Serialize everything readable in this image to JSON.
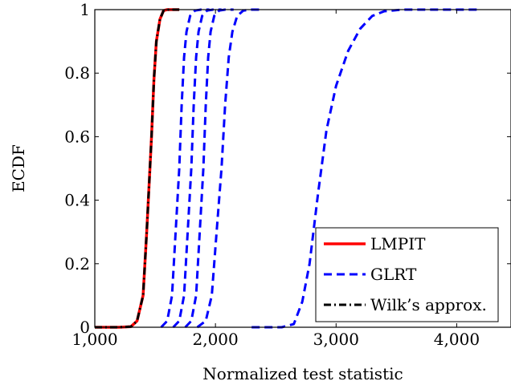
{
  "chart_data": {
    "type": "line",
    "title": "",
    "xlabel": "Normalized test statistic",
    "ylabel": "ECDF",
    "xlim": [
      1000,
      4450
    ],
    "ylim": [
      0,
      1
    ],
    "x_ticks": [
      1000,
      2000,
      3000,
      4000
    ],
    "x_tick_labels": [
      "1,000",
      "2,000",
      "3,000",
      "4,000"
    ],
    "y_ticks": [
      0,
      0.2,
      0.4,
      0.6,
      0.8,
      1
    ],
    "y_tick_labels": [
      "0",
      "0.2",
      "0.4",
      "0.6",
      "0.8",
      "1"
    ],
    "grid": false,
    "legend": {
      "position": "bottom-right",
      "entries": [
        "LMPIT",
        "GLRT",
        "Wilk’s approx."
      ]
    },
    "series": [
      {
        "name": "LMPIT",
        "color": "#ff0000",
        "style": "solid",
        "x": [
          1000,
          1200,
          1300,
          1350,
          1400,
          1430,
          1450,
          1470,
          1490,
          1510,
          1540,
          1570,
          1600,
          1700
        ],
        "y": [
          0,
          0,
          0.002,
          0.02,
          0.1,
          0.3,
          0.45,
          0.6,
          0.78,
          0.9,
          0.97,
          0.997,
          1,
          1
        ]
      },
      {
        "name": "GLRT",
        "color": "#0000ff",
        "style": "dashed",
        "x": [
          1550,
          1600,
          1640,
          1670,
          1700,
          1720,
          1740,
          1760,
          1790,
          1830,
          1880,
          1950
        ],
        "y": [
          0,
          0.02,
          0.1,
          0.3,
          0.5,
          0.7,
          0.85,
          0.93,
          0.98,
          0.997,
          1,
          1
        ]
      },
      {
        "name": "GLRT",
        "color": "#0000ff",
        "style": "dashed",
        "x": [
          1650,
          1700,
          1740,
          1770,
          1800,
          1820,
          1840,
          1860,
          1890,
          1930,
          1980,
          2050
        ],
        "y": [
          0,
          0.02,
          0.1,
          0.3,
          0.5,
          0.7,
          0.85,
          0.93,
          0.98,
          0.997,
          1,
          1
        ]
      },
      {
        "name": "GLRT",
        "color": "#0000ff",
        "style": "dashed",
        "x": [
          1750,
          1800,
          1840,
          1870,
          1900,
          1920,
          1940,
          1960,
          1990,
          2030,
          2080,
          2150
        ],
        "y": [
          0,
          0.02,
          0.1,
          0.3,
          0.5,
          0.7,
          0.85,
          0.93,
          0.98,
          0.997,
          1,
          1
        ]
      },
      {
        "name": "GLRT",
        "color": "#0000ff",
        "style": "dashed",
        "x": [
          1850,
          1920,
          1970,
          2010,
          2050,
          2080,
          2110,
          2140,
          2180,
          2230,
          2300,
          2400
        ],
        "y": [
          0,
          0.02,
          0.1,
          0.3,
          0.5,
          0.7,
          0.85,
          0.93,
          0.98,
          0.997,
          1,
          1
        ]
      },
      {
        "name": "GLRT",
        "color": "#0000ff",
        "style": "dashed",
        "x": [
          2300,
          2550,
          2650,
          2720,
          2780,
          2850,
          2920,
          3000,
          3100,
          3200,
          3300,
          3400,
          3550,
          3800,
          4200
        ],
        "y": [
          0,
          0,
          0.01,
          0.08,
          0.2,
          0.42,
          0.62,
          0.76,
          0.87,
          0.94,
          0.98,
          0.995,
          1,
          1,
          1
        ]
      },
      {
        "name": "Wilk’s approx.",
        "color": "#000000",
        "style": "dashdot",
        "x": [
          1000,
          1200,
          1300,
          1350,
          1400,
          1430,
          1450,
          1470,
          1490,
          1510,
          1540,
          1570,
          1600,
          1700
        ],
        "y": [
          0,
          0,
          0.002,
          0.02,
          0.1,
          0.3,
          0.45,
          0.6,
          0.78,
          0.9,
          0.97,
          0.997,
          1,
          1
        ]
      }
    ]
  }
}
